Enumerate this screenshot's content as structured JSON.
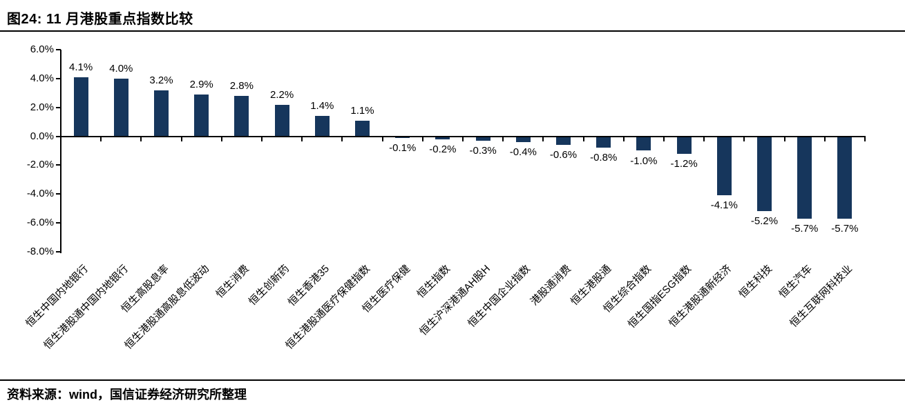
{
  "header": {
    "title": "图24: 11 月港股重点指数比较"
  },
  "footer": {
    "source": "资料来源：wind，国信证券经济研究所整理"
  },
  "colors": {
    "bar": "#16365C",
    "axis": "#000000",
    "text": "#000000",
    "background": "#FFFFFF"
  },
  "chart_data": {
    "type": "bar",
    "title": "图24: 11 月港股重点指数比较",
    "categories": [
      "恒生中国内地银行",
      "恒生港股通中国内地银行",
      "恒生高股息率",
      "恒生港股通高股息低波动",
      "恒生消费",
      "恒生创新药",
      "恒生香港35",
      "恒生港股通医疗保健指数",
      "恒生医疗保健",
      "恒生指数",
      "恒生沪深港通AH股H",
      "恒生中国企业指数",
      "港股通消费",
      "恒生港股通",
      "恒生综合指数",
      "恒生国指ESG指数",
      "恒生港股通新经济",
      "恒生科技",
      "恒生汽车",
      "恒生互联网科技业"
    ],
    "values": [
      4.1,
      4.0,
      3.2,
      2.9,
      2.8,
      2.2,
      1.4,
      1.1,
      -0.1,
      -0.2,
      -0.3,
      -0.4,
      -0.6,
      -0.8,
      -1.0,
      -1.2,
      -4.1,
      -5.2,
      -5.7,
      -5.7
    ],
    "value_labels": [
      "4.1%",
      "4.0%",
      "3.2%",
      "2.9%",
      "2.8%",
      "2.2%",
      "1.4%",
      "1.1%",
      "-0.1%",
      "-0.2%",
      "-0.3%",
      "-0.4%",
      "-0.6%",
      "-0.8%",
      "-1.0%",
      "-1.2%",
      "-4.1%",
      "-5.2%",
      "-5.7%",
      "-5.7%"
    ],
    "xlabel": "",
    "ylabel": "",
    "ylim": [
      -8.0,
      6.0
    ],
    "ytick_step": 2.0,
    "yticks": [
      "6.0%",
      "4.0%",
      "2.0%",
      "0.0%",
      "-2.0%",
      "-4.0%",
      "-6.0%",
      "-8.0%"
    ],
    "grid": false,
    "legend": null,
    "data_labels": true,
    "source": "资料来源：wind，国信证券经济研究所整理"
  }
}
